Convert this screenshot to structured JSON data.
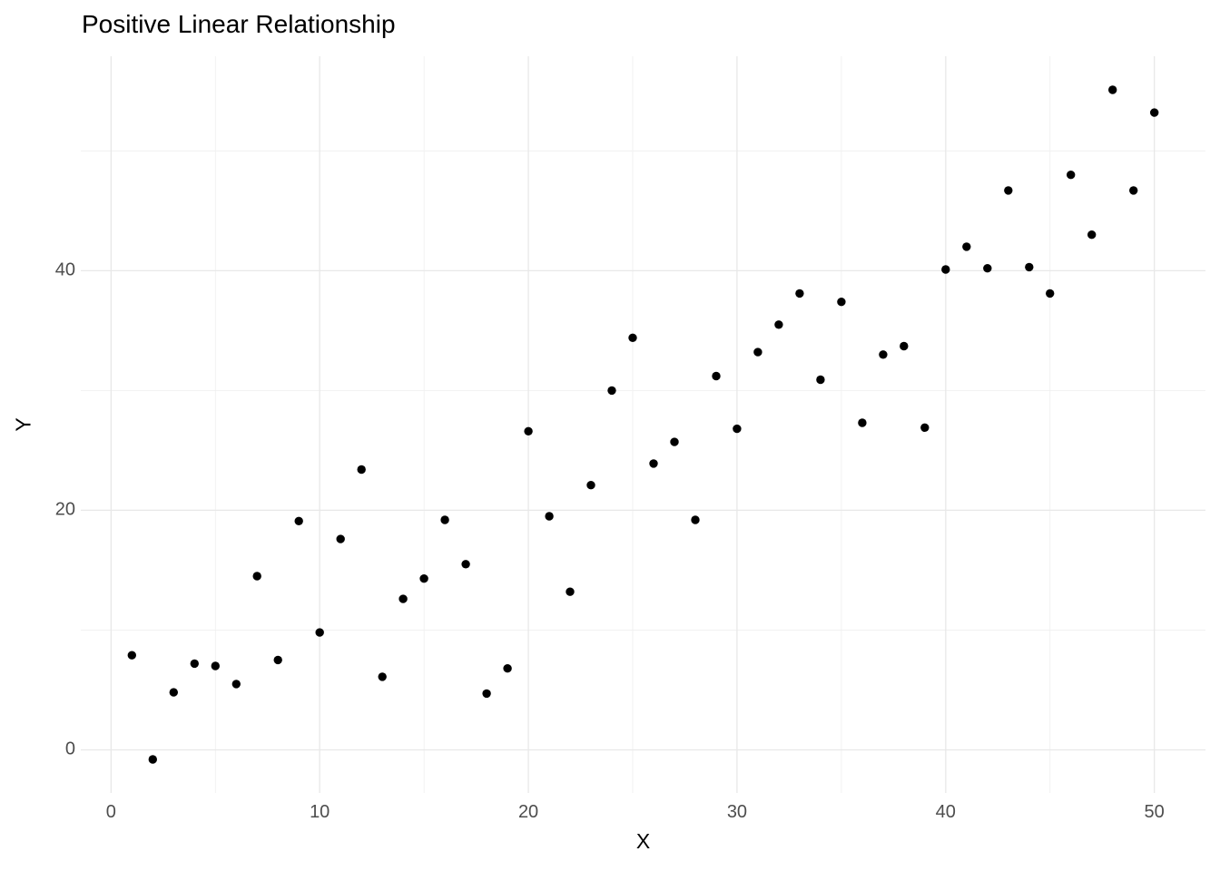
{
  "figure": {
    "background_color": "#FFFFFF"
  },
  "chart_data": {
    "type": "scatter",
    "title": "Positive Linear Relationship",
    "xlabel": "X",
    "ylabel": "Y",
    "x": [
      1,
      2,
      3,
      4,
      5,
      6,
      7,
      8,
      9,
      10,
      11,
      12,
      13,
      14,
      15,
      16,
      17,
      18,
      19,
      20,
      21,
      22,
      23,
      24,
      25,
      26,
      27,
      28,
      29,
      30,
      31,
      32,
      33,
      34,
      35,
      36,
      37,
      38,
      39,
      40,
      41,
      42,
      43,
      44,
      45,
      46,
      47,
      48,
      49,
      50
    ],
    "y": [
      7.9,
      -0.8,
      4.8,
      7.2,
      7.0,
      5.5,
      14.5,
      7.5,
      19.1,
      9.8,
      17.6,
      23.4,
      6.1,
      12.6,
      14.3,
      19.2,
      15.5,
      4.7,
      6.8,
      26.6,
      19.5,
      13.2,
      22.1,
      30.0,
      34.4,
      23.9,
      25.7,
      19.2,
      31.2,
      26.8,
      33.2,
      35.5,
      38.1,
      30.9,
      37.4,
      27.3,
      33.0,
      33.7,
      26.9,
      40.1,
      42.0,
      40.2,
      46.7,
      40.3,
      38.1,
      48.0,
      43.0,
      55.1,
      46.7,
      53.2
    ],
    "x_major_ticks": [
      0,
      10,
      20,
      30,
      40,
      50
    ],
    "x_minor_gridlines": [
      5,
      15,
      25,
      35,
      45
    ],
    "y_major_ticks": [
      0,
      20,
      40
    ],
    "y_minor_gridlines": [
      10,
      30,
      50
    ],
    "xlim": [
      -1.45,
      52.45
    ],
    "ylim": [
      -3.6,
      57.9
    ],
    "grid": "on",
    "legend": "none",
    "point_color": "#000000",
    "major_grid_color": "#E8E8E8",
    "minor_grid_color": "#EFEFEF",
    "tick_label_color": "#4D4D4D",
    "title_color": "#000000",
    "axis_label_color": "#000000"
  }
}
